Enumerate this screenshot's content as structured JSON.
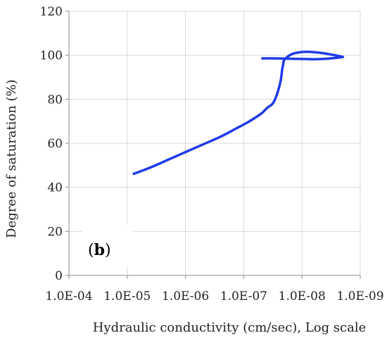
{
  "chart_data": {
    "type": "line",
    "title": "",
    "xlabel": "Hydraulic conductivity (cm/sec), Log scale",
    "ylabel": "Degree of saturation (%)",
    "x_scale": "log",
    "x_reversed": true,
    "xlim": [
      0.0001,
      1e-09
    ],
    "ylim": [
      0,
      120
    ],
    "x_ticks": [
      0.0001,
      1e-05,
      1e-06,
      1e-07,
      1e-08,
      1e-09
    ],
    "x_tick_labels": [
      "1.0E-04",
      "1.0E-05",
      "1.0E-06",
      "1.0E-07",
      "1.0E-08",
      "1.0E-09"
    ],
    "y_ticks": [
      0,
      20,
      40,
      60,
      80,
      100,
      120
    ],
    "y_tick_labels": [
      "0",
      "20",
      "40",
      "60",
      "80",
      "100",
      "120"
    ],
    "grid": true,
    "panel_label": {
      "open": "(",
      "bold": "b",
      "close": ")"
    },
    "colors": {
      "line": "#1f3be6",
      "grid": "#d9d9d9",
      "axis": "#8c8c8c"
    },
    "series": [
      {
        "x": [
          8e-06,
          4e-06,
          2e-06,
          1e-06,
          5e-07,
          2.5e-07,
          1.4e-07,
          8e-08,
          5e-08,
          4e-08,
          3.2e-08,
          2.8e-08,
          2.5e-08,
          2.3e-08,
          2.2e-08,
          2.1e-08,
          2e-08,
          1.5e-08,
          1e-08,
          7e-09,
          4.5e-09,
          3e-09,
          2.2e-09,
          2e-09,
          2.6e-09,
          4e-09,
          6e-09,
          9e-09,
          1.4e-08,
          2e-08,
          3e-08,
          5e-08
        ],
        "y": [
          46,
          49,
          52.5,
          56,
          59.5,
          63,
          66.5,
          70,
          73.5,
          76,
          78,
          81,
          85,
          89,
          93,
          96,
          98,
          100.5,
          101.5,
          101.5,
          101,
          100.2,
          99.5,
          99.2,
          98.8,
          98.4,
          98.2,
          98.3,
          98.4,
          98.5,
          98.6,
          98.6
        ]
      }
    ]
  }
}
